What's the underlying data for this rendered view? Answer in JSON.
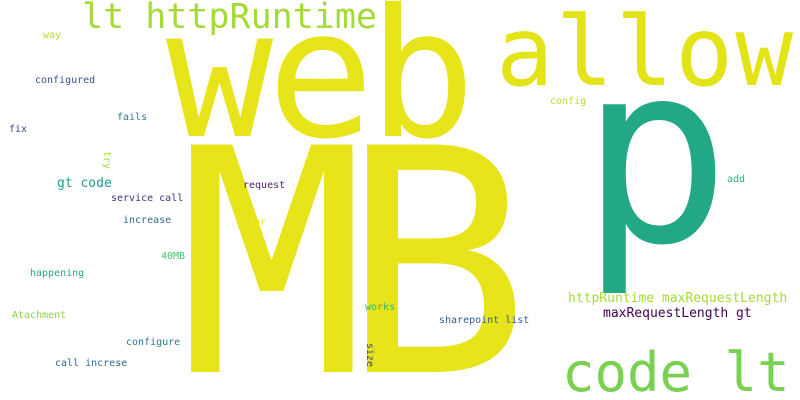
{
  "words": [
    {
      "text": "MB",
      "color": "#e7e419",
      "vertical": false
    },
    {
      "text": "web",
      "color": "#e7e419",
      "vertical": false
    },
    {
      "text": "p",
      "color": "#22a884",
      "vertical": false
    },
    {
      "text": "allow",
      "color": "#e2e418",
      "vertical": false
    },
    {
      "text": "lt httpRuntime",
      "color": "#a5db36",
      "vertical": false
    },
    {
      "text": "code lt",
      "color": "#7ad151",
      "vertical": false
    },
    {
      "text": "httpRuntime maxRequestLength",
      "color": "#a5db36",
      "vertical": false
    },
    {
      "text": "maxRequestLength gt",
      "color": "#440154",
      "vertical": false
    },
    {
      "text": "gt code",
      "color": "#1f9e89",
      "vertical": false
    },
    {
      "text": "way",
      "color": "#b5de2b",
      "vertical": false
    },
    {
      "text": "configured",
      "color": "#3b528b",
      "vertical": false
    },
    {
      "text": "fails",
      "color": "#27808e",
      "vertical": false
    },
    {
      "text": "fix",
      "color": "#3e4a89",
      "vertical": false
    },
    {
      "text": "try",
      "color": "#a5db36",
      "vertical": true
    },
    {
      "text": "config",
      "color": "#b5de2b",
      "vertical": false
    },
    {
      "text": "request",
      "color": "#481f70",
      "vertical": false
    },
    {
      "text": "service call",
      "color": "#46327e",
      "vertical": false
    },
    {
      "text": "add",
      "color": "#2db27d",
      "vertical": false
    },
    {
      "text": "increase",
      "color": "#31688e",
      "vertical": false
    },
    {
      "text": "br",
      "color": "#e2e418",
      "vertical": false
    },
    {
      "text": "40MB",
      "color": "#4ac16d",
      "vertical": false
    },
    {
      "text": "happening",
      "color": "#22a884",
      "vertical": false
    },
    {
      "text": "Atachment",
      "color": "#86d549",
      "vertical": false
    },
    {
      "text": "works",
      "color": "#35b779",
      "vertical": false
    },
    {
      "text": "sharepoint list",
      "color": "#355f8d",
      "vertical": false
    },
    {
      "text": "configure",
      "color": "#2a788e",
      "vertical": false
    },
    {
      "text": "size",
      "color": "#414487",
      "vertical": true
    },
    {
      "text": "call increse",
      "color": "#31688e",
      "vertical": false
    }
  ]
}
